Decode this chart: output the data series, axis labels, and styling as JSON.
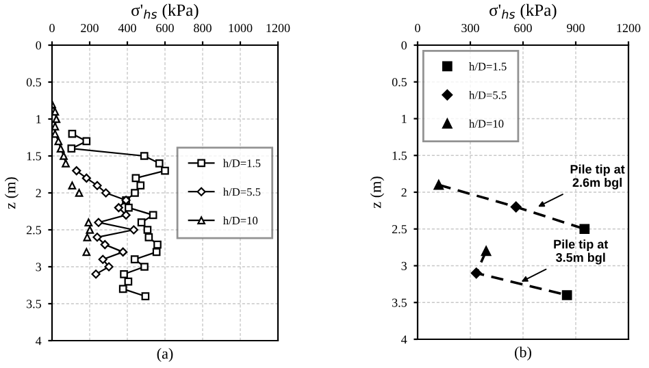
{
  "chart_data": [
    {
      "type": "line",
      "xlabel": "σ'$_{hs}$ (kPa)",
      "ylabel": "z (m)",
      "xlim": [
        0,
        1200
      ],
      "xticks": [
        0,
        200,
        400,
        600,
        800,
        1000,
        1200
      ],
      "ylim": [
        4,
        0
      ],
      "yticks": [
        0,
        0.5,
        1,
        1.5,
        2,
        2.5,
        3,
        3.5,
        4
      ],
      "grid": true,
      "legend": "center right",
      "annotations": [
        "(a)"
      ],
      "series": [
        {
          "name": "h/D=1.5",
          "color": "#000000",
          "marker": "square",
          "line_style": "solid",
          "x": [
            107,
            183,
            103,
            490,
            570,
            600,
            445,
            470,
            440,
            393,
            407,
            537,
            475,
            507,
            514,
            560,
            555,
            439,
            491,
            382,
            405,
            377,
            496
          ],
          "values": [
            1.2,
            1.3,
            1.4,
            1.5,
            1.6,
            1.7,
            1.8,
            1.9,
            2.0,
            2.1,
            2.2,
            2.3,
            2.4,
            2.5,
            2.6,
            2.7,
            2.8,
            2.9,
            3.0,
            3.1,
            3.2,
            3.3,
            3.4
          ]
        },
        {
          "name": "h/D=5.5",
          "color": "#000000",
          "marker": "diamond",
          "line_style": "solid",
          "x": [
            130,
            183,
            240,
            286,
            393,
            354,
            393,
            247,
            434,
            240,
            281,
            377,
            270,
            302,
            233
          ],
          "values": [
            1.7,
            1.8,
            1.9,
            2.0,
            2.1,
            2.2,
            2.3,
            2.4,
            2.5,
            2.6,
            2.7,
            2.8,
            2.9,
            3.0,
            3.1
          ]
        },
        {
          "name": "h/D=10",
          "color": "#000000",
          "marker": "triangle",
          "line_style": "solid",
          "x": [
            0,
            16,
            23,
            16,
            16,
            34,
            46,
            62,
            73,
            null,
            107,
            null,
            144,
            null,
            194,
            null,
            201,
            null,
            187,
            null,
            183
          ],
          "values": [
            0.8,
            0.9,
            1.0,
            1.1,
            1.2,
            1.3,
            1.4,
            1.5,
            1.6,
            null,
            1.9,
            null,
            2.0,
            null,
            2.4,
            null,
            2.5,
            null,
            2.6,
            null,
            2.8
          ]
        }
      ]
    },
    {
      "type": "scatter",
      "xlabel": "σ'$_{hs}$ (kPa)",
      "ylabel": "z (m)",
      "xlim": [
        0,
        1200
      ],
      "xticks": [
        0,
        300,
        600,
        900,
        1200
      ],
      "ylim": [
        4,
        0
      ],
      "yticks": [
        0,
        0.5,
        1,
        1.5,
        2,
        2.5,
        3,
        3.5,
        4
      ],
      "grid": true,
      "legend": "top left",
      "annotations": [
        "(b)",
        {
          "text": "Pile tip at\n2.6m bgl",
          "x": 666,
          "y": 2.22
        },
        {
          "text": "Pile tip at\n3.5m bgl",
          "x": 571,
          "y": 3.24
        }
      ],
      "series": [
        {
          "type": "line",
          "color": "#000000",
          "marker": "none",
          "line_style": "dashed",
          "x": [
            120,
            560,
            950
          ],
          "values": [
            1.9,
            2.2,
            2.5
          ]
        },
        {
          "type": "line",
          "color": "#000000",
          "marker": "none",
          "line_style": "dashed",
          "x": [
            390,
            334,
            850
          ],
          "values": [
            2.8,
            3.1,
            3.4
          ]
        },
        {
          "name": "h/D=1.5",
          "color": "#000000",
          "marker": "square",
          "x": [
            950,
            850
          ],
          "values": [
            2.5,
            3.4
          ]
        },
        {
          "name": "h/D=5.5",
          "color": "#000000",
          "marker": "diamond",
          "x": [
            560,
            334
          ],
          "values": [
            2.2,
            3.1
          ]
        },
        {
          "name": "h/D=10",
          "color": "#000000",
          "marker": "triangle",
          "x": [
            120,
            390
          ],
          "values": [
            1.9,
            2.8
          ]
        }
      ]
    }
  ]
}
